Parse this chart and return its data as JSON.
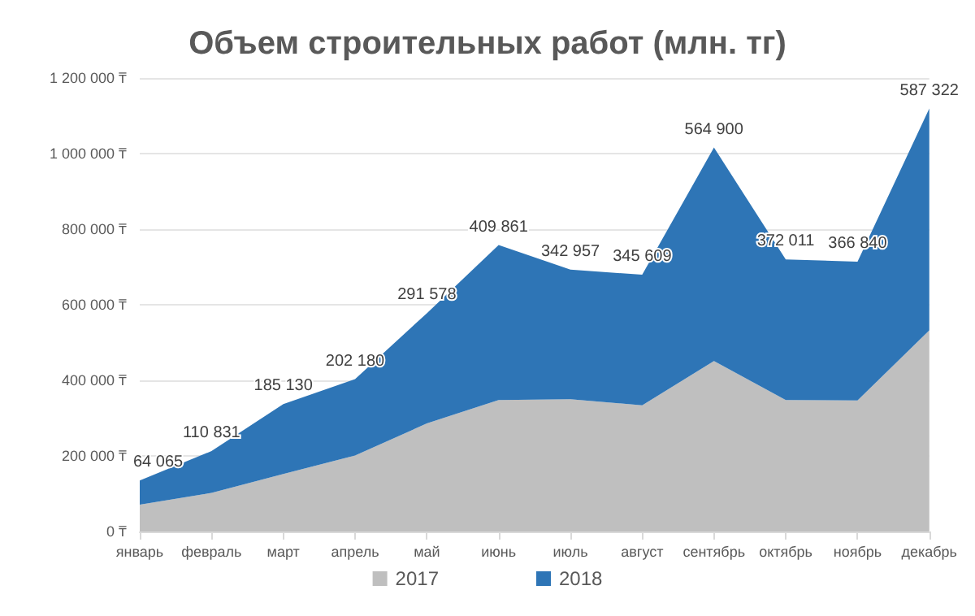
{
  "chart_data": {
    "type": "area",
    "title": "Объем строительных работ (млн. тг)",
    "stacked": true,
    "categories": [
      "январь",
      "февраль",
      "март",
      "апрель",
      "май",
      "июнь",
      "июль",
      "август",
      "сентябрь",
      "октябрь",
      "ноябрь",
      "декабрь"
    ],
    "series": [
      {
        "name": "2017",
        "color": "#bfbfbf",
        "values": [
          71000,
          102000,
          152000,
          201000,
          286000,
          348000,
          350000,
          334000,
          451000,
          348000,
          347000,
          532000
        ]
      },
      {
        "name": "2018",
        "color": "#2e75b6",
        "values": [
          64065,
          110831,
          185130,
          202180,
          291578,
          409861,
          342957,
          345609,
          564900,
          372011,
          366840,
          587322
        ],
        "value_labels": [
          "64 065",
          "110 831",
          "185 130",
          "202 180",
          "291 578",
          "409 861",
          "342 957",
          "345 609",
          "564 900",
          "372 011",
          "366 840",
          "587 322"
        ]
      }
    ],
    "ylim": [
      0,
      1200000
    ],
    "yticks": [
      {
        "value": 0,
        "label": "0 ₸"
      },
      {
        "value": 200000,
        "label": "200 000 ₸"
      },
      {
        "value": 400000,
        "label": "400 000 ₸"
      },
      {
        "value": 600000,
        "label": "600 000 ₸"
      },
      {
        "value": 800000,
        "label": "800 000 ₸"
      },
      {
        "value": 1000000,
        "label": "1 000 000 ₸"
      },
      {
        "value": 1200000,
        "label": "1 200 000 ₸"
      }
    ],
    "grid": "y",
    "legend": "bottom"
  }
}
